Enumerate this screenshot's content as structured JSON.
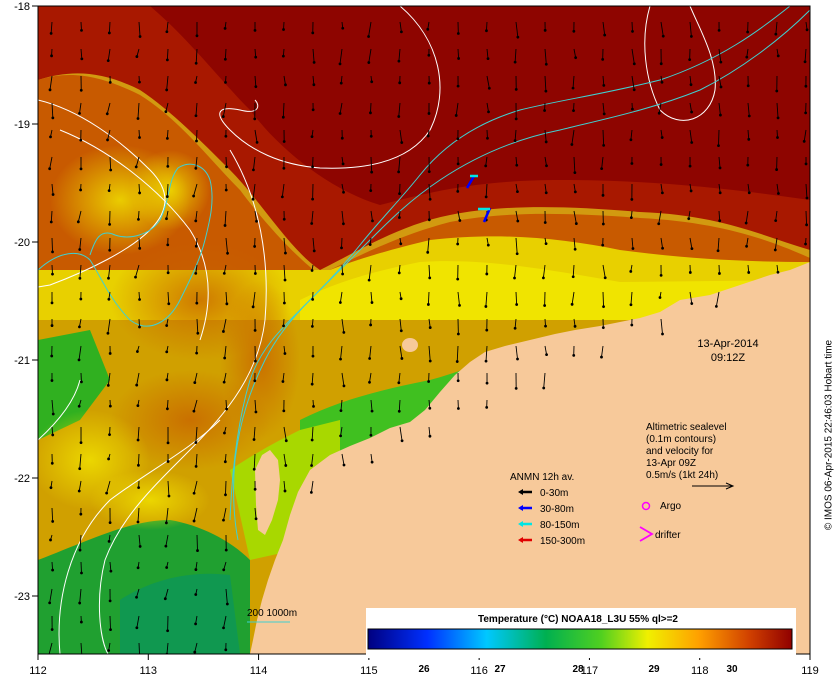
{
  "map": {
    "lon_ticks": [
      "112",
      "113",
      "114",
      "115",
      "116",
      "117",
      "118",
      "119"
    ],
    "lat_ticks": [
      "-18",
      "-19",
      "-20",
      "-21",
      "-22",
      "-23"
    ],
    "date_label": "13-Apr-2014",
    "time_label": "09:12Z",
    "altimetry_note": [
      "Altimetric sealevel",
      "(0.1m contours)",
      "and velocity for",
      "13-Apr 09Z",
      "0.5m/s (1kt 24h)"
    ],
    "legend_title": "ANMN 12h av.",
    "legend_items": [
      {
        "label": "0-30m",
        "color": "#000000"
      },
      {
        "label": "30-80m",
        "color": "#0000ff"
      },
      {
        "label": "80-150m",
        "color": "#00e5e5"
      },
      {
        "label": "150-300m",
        "color": "#e00000"
      }
    ],
    "argo_label": "Argo",
    "drifter_label": "drifter",
    "marker_color": "#ff00ff",
    "isobath_label": "200  1000m",
    "isobath_color": "#40d0d0",
    "colorbar_title": "Temperature (°C) NOAA18_L3U 55% ql>=2",
    "colorbar_ticks": [
      "26",
      "27",
      "28",
      "29",
      "30"
    ],
    "credit": "© IMOS 06-Apr-2015 22:46:03 Hobart time",
    "land_color": "#f7c99a"
  }
}
